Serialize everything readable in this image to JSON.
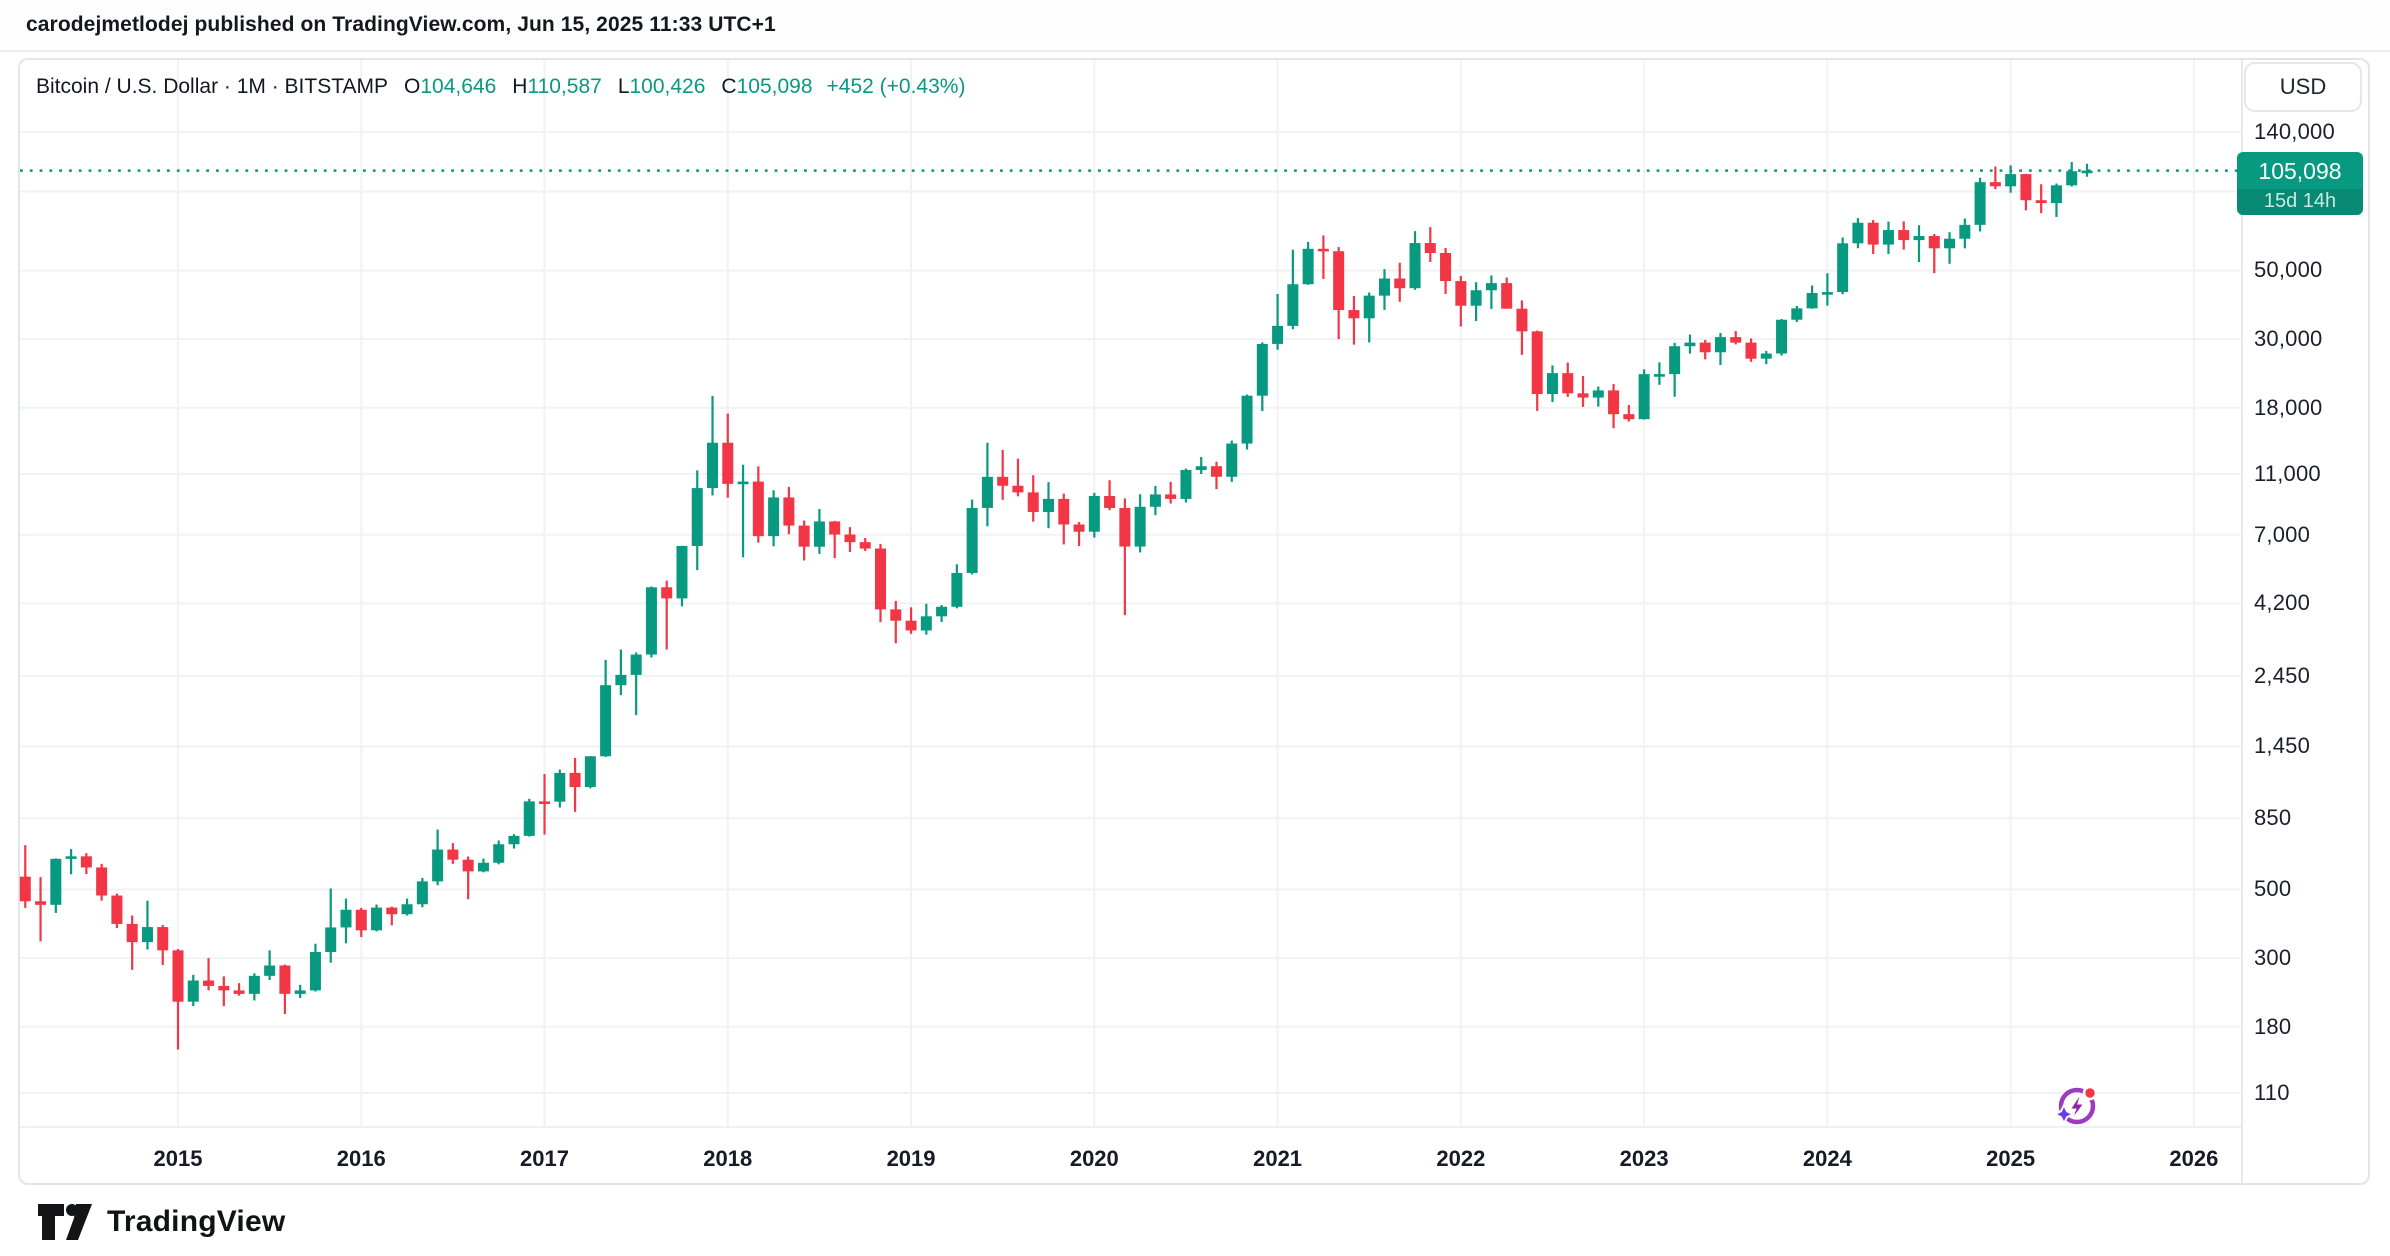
{
  "header": {
    "published_line": "carodejmetlodej published on TradingView.com, Jun 15, 2025 11:33 UTC+1"
  },
  "legend": {
    "symbol_title": "Bitcoin / U.S. Dollar · 1M · BITSTAMP",
    "ohlc": [
      {
        "label": "O",
        "value": "104,646"
      },
      {
        "label": "H",
        "value": "110,587"
      },
      {
        "label": "L",
        "value": "100,426"
      },
      {
        "label": "C",
        "value": "105,098"
      }
    ],
    "change": "+452 (+0.43%)"
  },
  "price_axis": {
    "currency_label": "USD",
    "tick_labels": [
      "140,000",
      "50,000",
      "30,000",
      "18,000",
      "11,000",
      "7,000",
      "4,200",
      "2,450",
      "1,450",
      "850",
      "500",
      "300",
      "180",
      "110"
    ],
    "last_price_label": "105,098",
    "countdown_label": "15d 14h"
  },
  "time_axis": {
    "years": [
      "2015",
      "2016",
      "2017",
      "2018",
      "2019",
      "2020",
      "2021",
      "2022",
      "2023",
      "2024",
      "2025",
      "2026"
    ]
  },
  "footer": {
    "brand": "TradingView"
  },
  "colors": {
    "up": "#089981",
    "down": "#F23645",
    "grid": "#f1f2f5",
    "separator": "#e6e8ee",
    "badge_bg": "#089981",
    "dotted_line": "#089981"
  },
  "chart_data": {
    "type": "candlestick",
    "title": "Bitcoin / U.S. Dollar",
    "exchange": "BITSTAMP",
    "interval": "1M",
    "ylabel": "USD",
    "scale": "log",
    "grid": true,
    "y_ticks": [
      140000,
      50000,
      30000,
      18000,
      11000,
      7000,
      4200,
      2450,
      1450,
      850,
      500,
      300,
      180,
      110
    ],
    "hidden_grid_levels": [
      90000
    ],
    "last_price": 105098,
    "candles": [
      [
        "2014-03",
        550,
        695,
        436,
        458
      ],
      [
        "2014-04",
        458,
        548,
        340,
        446
      ],
      [
        "2014-05",
        446,
        630,
        420,
        628
      ],
      [
        "2014-06",
        628,
        675,
        560,
        640
      ],
      [
        "2014-07",
        640,
        655,
        561,
        589
      ],
      [
        "2014-08",
        589,
        605,
        460,
        478
      ],
      [
        "2014-09",
        478,
        485,
        375,
        387
      ],
      [
        "2014-10",
        387,
        412,
        275,
        338
      ],
      [
        "2014-11",
        338,
        460,
        320,
        378
      ],
      [
        "2014-12",
        378,
        384,
        285,
        318
      ],
      [
        "2015-01",
        318,
        321,
        152,
        217
      ],
      [
        "2015-02",
        217,
        265,
        210,
        254
      ],
      [
        "2015-03",
        254,
        300,
        236,
        244
      ],
      [
        "2015-04",
        244,
        262,
        210,
        236
      ],
      [
        "2015-05",
        236,
        249,
        227,
        230
      ],
      [
        "2015-06",
        230,
        268,
        219,
        263
      ],
      [
        "2015-07",
        263,
        318,
        255,
        284
      ],
      [
        "2015-08",
        284,
        286,
        198,
        230
      ],
      [
        "2015-09",
        230,
        246,
        223,
        236
      ],
      [
        "2015-10",
        236,
        334,
        234,
        314
      ],
      [
        "2015-11",
        314,
        504,
        290,
        377
      ],
      [
        "2015-12",
        377,
        467,
        335,
        430
      ],
      [
        "2016-01",
        430,
        436,
        351,
        369
      ],
      [
        "2016-02",
        369,
        447,
        366,
        437
      ],
      [
        "2016-03",
        437,
        440,
        383,
        416
      ],
      [
        "2016-04",
        416,
        467,
        412,
        448
      ],
      [
        "2016-05",
        448,
        545,
        438,
        531
      ],
      [
        "2016-06",
        531,
        781,
        516,
        673
      ],
      [
        "2016-07",
        673,
        706,
        605,
        624
      ],
      [
        "2016-08",
        624,
        639,
        465,
        572
      ],
      [
        "2016-09",
        572,
        629,
        568,
        610
      ],
      [
        "2016-10",
        610,
        720,
        603,
        700
      ],
      [
        "2016-11",
        700,
        755,
        678,
        745
      ],
      [
        "2016-12",
        745,
        982,
        741,
        963
      ],
      [
        "2017-01",
        963,
        1180,
        752,
        961
      ],
      [
        "2017-02",
        961,
        1220,
        920,
        1190
      ],
      [
        "2017-03",
        1190,
        1330,
        891,
        1071
      ],
      [
        "2017-04",
        1071,
        1347,
        1061,
        1347
      ],
      [
        "2017-05",
        1347,
        2760,
        1340,
        2286
      ],
      [
        "2017-06",
        2286,
        2980,
        2123,
        2468
      ],
      [
        "2017-07",
        2468,
        2916,
        1830,
        2871
      ],
      [
        "2017-08",
        2871,
        4765,
        2809,
        4735
      ],
      [
        "2017-09",
        4735,
        4975,
        2980,
        4360
      ],
      [
        "2017-10",
        4360,
        6450,
        4110,
        6440
      ],
      [
        "2017-11",
        6440,
        11300,
        5380,
        9906
      ],
      [
        "2017-12",
        9906,
        19666,
        9380,
        13880
      ],
      [
        "2018-01",
        13880,
        17234,
        9222,
        10221
      ],
      [
        "2018-02",
        10221,
        11786,
        5920,
        10397
      ],
      [
        "2018-03",
        10397,
        11650,
        6600,
        6928
      ],
      [
        "2018-04",
        6928,
        9745,
        6425,
        9240
      ],
      [
        "2018-05",
        9240,
        9990,
        7032,
        7494
      ],
      [
        "2018-06",
        7494,
        7780,
        5780,
        6404
      ],
      [
        "2018-07",
        6404,
        8480,
        6070,
        7729
      ],
      [
        "2018-08",
        7729,
        7760,
        5880,
        7011
      ],
      [
        "2018-09",
        7011,
        7410,
        6160,
        6626
      ],
      [
        "2018-10",
        6626,
        6830,
        6200,
        6317
      ],
      [
        "2018-11",
        6317,
        6540,
        3653,
        4017
      ],
      [
        "2018-12",
        4017,
        4280,
        3122,
        3693
      ],
      [
        "2019-01",
        3693,
        4080,
        3350,
        3434
      ],
      [
        "2019-02",
        3434,
        4190,
        3330,
        3816
      ],
      [
        "2019-03",
        3816,
        4150,
        3660,
        4096
      ],
      [
        "2019-04",
        4096,
        5620,
        4050,
        5268
      ],
      [
        "2019-05",
        5268,
        9090,
        5210,
        8545
      ],
      [
        "2019-06",
        8545,
        13880,
        7452,
        10771
      ],
      [
        "2019-07",
        10771,
        13150,
        9080,
        10080
      ],
      [
        "2019-08",
        10080,
        12325,
        9320,
        9594
      ],
      [
        "2019-09",
        9594,
        10898,
        7714,
        8293
      ],
      [
        "2019-10",
        8293,
        10350,
        7350,
        9140
      ],
      [
        "2019-11",
        9140,
        9505,
        6515,
        7556
      ],
      [
        "2019-12",
        7556,
        7690,
        6435,
        7160
      ],
      [
        "2020-01",
        7160,
        9560,
        6853,
        9338
      ],
      [
        "2020-02",
        9338,
        10500,
        8400,
        8543
      ],
      [
        "2020-03",
        8543,
        9170,
        3850,
        6412
      ],
      [
        "2020-04",
        6412,
        9460,
        6140,
        8620
      ],
      [
        "2020-05",
        8620,
        10067,
        8100,
        9448
      ],
      [
        "2020-06",
        9448,
        10380,
        8830,
        9137
      ],
      [
        "2020-07",
        9137,
        11450,
        8900,
        11335
      ],
      [
        "2020-08",
        11335,
        12480,
        11000,
        11655
      ],
      [
        "2020-09",
        11655,
        12050,
        9825,
        10776
      ],
      [
        "2020-10",
        10776,
        14100,
        10374,
        13797
      ],
      [
        "2020-11",
        13797,
        19863,
        13200,
        19698
      ],
      [
        "2020-12",
        19698,
        29300,
        17572,
        28949
      ],
      [
        "2021-01",
        28949,
        42000,
        27734,
        33114
      ],
      [
        "2021-02",
        33114,
        58356,
        32296,
        45135
      ],
      [
        "2021-03",
        45135,
        61844,
        44963,
        58763
      ],
      [
        "2021-04",
        58763,
        64895,
        46930,
        57697
      ],
      [
        "2021-05",
        57697,
        59500,
        30000,
        37253
      ],
      [
        "2021-06",
        37253,
        41330,
        28800,
        35026
      ],
      [
        "2021-07",
        35026,
        42448,
        29278,
        41460
      ],
      [
        "2021-08",
        41460,
        50500,
        37300,
        47100
      ],
      [
        "2021-09",
        47100,
        52950,
        39600,
        43824
      ],
      [
        "2021-10",
        43824,
        67000,
        43283,
        61318
      ],
      [
        "2021-11",
        61318,
        69000,
        53256,
        56950
      ],
      [
        "2021-12",
        56950,
        59100,
        42000,
        46216
      ],
      [
        "2022-01",
        46216,
        47990,
        32950,
        38466
      ],
      [
        "2022-02",
        38466,
        45821,
        34322,
        43160
      ],
      [
        "2022-03",
        43160,
        48200,
        37555,
        45510
      ],
      [
        "2022-04",
        45510,
        47448,
        37600,
        37630
      ],
      [
        "2022-05",
        37630,
        40020,
        26700,
        31784
      ],
      [
        "2022-06",
        31784,
        31980,
        17593,
        19942
      ],
      [
        "2022-07",
        19942,
        24668,
        18781,
        23293
      ],
      [
        "2022-08",
        23293,
        25211,
        19526,
        20048
      ],
      [
        "2022-09",
        20048,
        22799,
        18125,
        19422
      ],
      [
        "2022-10",
        19422,
        21085,
        18157,
        20489
      ],
      [
        "2022-11",
        20489,
        21480,
        15460,
        17163
      ],
      [
        "2022-12",
        17163,
        18385,
        16256,
        16537
      ],
      [
        "2023-01",
        16537,
        23960,
        16490,
        23125
      ],
      [
        "2023-02",
        23125,
        25250,
        21351,
        23130
      ],
      [
        "2023-03",
        23130,
        29184,
        19549,
        28465
      ],
      [
        "2023-04",
        28465,
        31050,
        26942,
        29233
      ],
      [
        "2023-05",
        29233,
        29820,
        25811,
        27210
      ],
      [
        "2023-06",
        27210,
        31400,
        24750,
        30460
      ],
      [
        "2023-07",
        30460,
        31850,
        28850,
        29230
      ],
      [
        "2023-08",
        29230,
        30150,
        25350,
        25940
      ],
      [
        "2023-09",
        25940,
        27480,
        24900,
        26960
      ],
      [
        "2023-10",
        26960,
        34850,
        26538,
        34656
      ],
      [
        "2023-11",
        34656,
        38415,
        34080,
        37718
      ],
      [
        "2023-12",
        37718,
        44700,
        37615,
        42280
      ],
      [
        "2024-01",
        42280,
        48969,
        38501,
        42580
      ],
      [
        "2024-02",
        42580,
        63933,
        41884,
        61198
      ],
      [
        "2024-03",
        61198,
        73794,
        59005,
        71333
      ],
      [
        "2024-04",
        71333,
        72797,
        56552,
        60636
      ],
      [
        "2024-05",
        60636,
        71946,
        56500,
        67540
      ],
      [
        "2024-06",
        67540,
        72000,
        58402,
        62678
      ],
      [
        "2024-07",
        62678,
        69987,
        53219,
        64628
      ],
      [
        "2024-08",
        64628,
        65619,
        49000,
        58969
      ],
      [
        "2024-09",
        58969,
        66500,
        52550,
        63329
      ],
      [
        "2024-10",
        63329,
        73620,
        58946,
        70215
      ],
      [
        "2024-11",
        70215,
        99655,
        66835,
        96449
      ],
      [
        "2024-12",
        96449,
        108364,
        91530,
        93557
      ],
      [
        "2025-01",
        93557,
        109358,
        89164,
        102405
      ],
      [
        "2025-02",
        102405,
        102590,
        78197,
        84349
      ],
      [
        "2025-03",
        84349,
        95000,
        76606,
        82548
      ],
      [
        "2025-04",
        82548,
        95490,
        74434,
        94207
      ],
      [
        "2025-05",
        94207,
        112000,
        93339,
        104646
      ],
      [
        "2025-06",
        104646,
        110587,
        100426,
        105098
      ]
    ]
  }
}
